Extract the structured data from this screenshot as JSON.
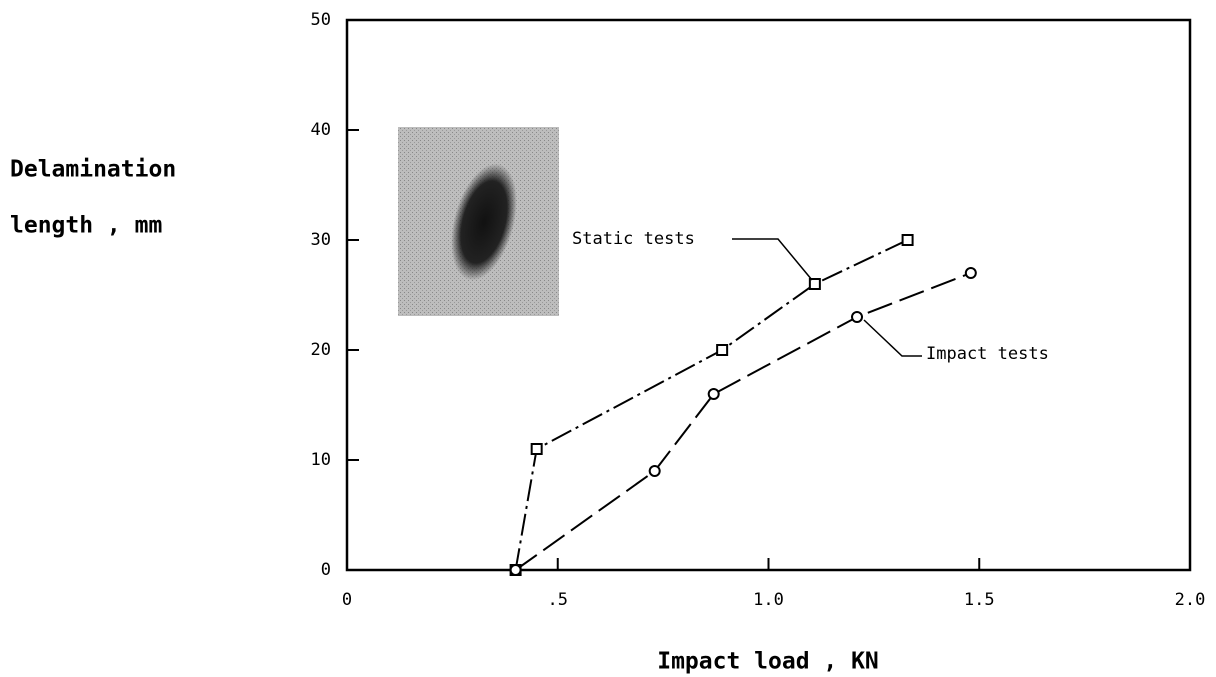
{
  "chart_data": {
    "type": "line",
    "xlabel": "Impact load , KN",
    "ylabel": [
      "Delamination",
      "length , mm"
    ],
    "annotations": [
      "Static tests",
      "Impact tests"
    ],
    "xlim": [
      0,
      2.0
    ],
    "xticks": [
      0,
      {
        "value": 0.5,
        "label": ".5"
      },
      {
        "value": 1.0,
        "label": "1.0"
      },
      {
        "value": 1.5,
        "label": "1.5"
      },
      {
        "value": 2.0,
        "label": "2.0"
      }
    ],
    "ylim": [
      0,
      50
    ],
    "yticks": [
      0,
      10,
      20,
      30,
      40,
      50
    ],
    "series": [
      {
        "name": "Static tests",
        "color": "#000000",
        "style": "dashdot",
        "marker": "square",
        "x": [
          0.4,
          0.45,
          0.89,
          1.11,
          1.33
        ],
        "values": [
          0,
          11,
          20,
          26,
          30
        ]
      },
      {
        "name": "Impact tests",
        "color": "#000000",
        "style": "dashed",
        "marker": "circle",
        "x": [
          0.4,
          0.73,
          0.87,
          1.21,
          1.48
        ],
        "values": [
          0,
          9,
          16,
          23,
          27
        ]
      }
    ]
  }
}
